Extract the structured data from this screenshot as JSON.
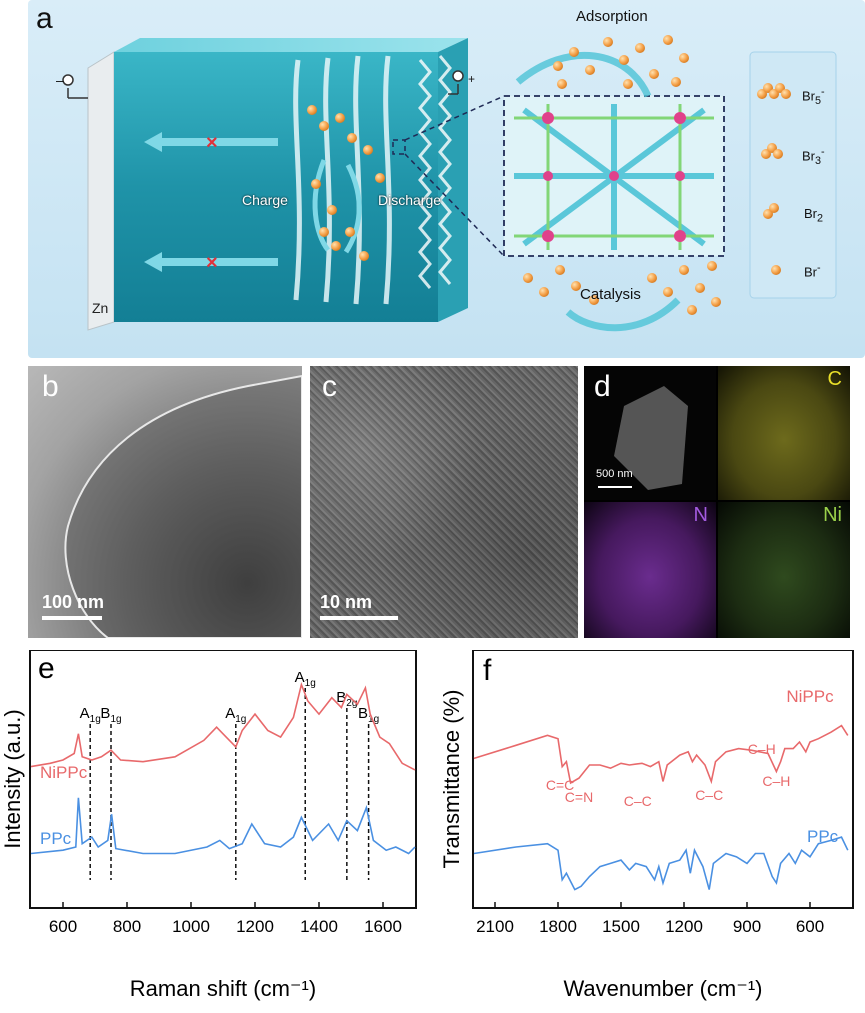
{
  "panel_a": {
    "label": "a",
    "minus_sign": "–",
    "plus_sign": "+",
    "zn_label": "Zn",
    "charge_label": "Charge",
    "discharge_label": "Discharge",
    "adsorption_label": "Adsorption",
    "catalysis_label": "Catalysis",
    "legend": [
      {
        "base": "Br",
        "sub": "5",
        "sup": "-",
        "count": 5
      },
      {
        "base": "Br",
        "sub": "3",
        "sup": "-",
        "count": 3
      },
      {
        "base": "Br",
        "sub": "2",
        "sup": "",
        "count": 2
      },
      {
        "base": "Br",
        "sub": "",
        "sup": "-",
        "count": 1
      }
    ]
  },
  "panel_b": {
    "label": "b",
    "scale": "100 nm"
  },
  "panel_c": {
    "label": "c",
    "scale": "10 nm"
  },
  "panel_d": {
    "label": "d",
    "scale": "500 nm",
    "maps": [
      "C",
      "N",
      "Ni"
    ]
  },
  "chart_data": [
    {
      "panel": "e",
      "type": "line",
      "xlabel": "Raman shift (cm⁻¹)",
      "ylabel": "Intensity (a.u.)",
      "xlim": [
        500,
        1700
      ],
      "xticks": [
        600,
        800,
        1000,
        1200,
        1400,
        1600
      ],
      "peak_lines": [
        {
          "x": 685,
          "base": "A",
          "sub": "1g"
        },
        {
          "x": 750,
          "base": "B",
          "sub": "1g"
        },
        {
          "x": 1140,
          "base": "A",
          "sub": "1g"
        },
        {
          "x": 1357,
          "base": "A",
          "sub": "1g"
        },
        {
          "x": 1487,
          "base": "B",
          "sub": "2g"
        },
        {
          "x": 1555,
          "base": "B",
          "sub": "1g"
        }
      ],
      "series": [
        {
          "name": "NiPPc",
          "color": "#e8696b",
          "offset": 0.55,
          "points": [
            [
              500,
              0.0
            ],
            [
              560,
              0.02
            ],
            [
              600,
              0.04
            ],
            [
              635,
              0.08
            ],
            [
              648,
              0.2
            ],
            [
              660,
              0.06
            ],
            [
              690,
              0.04
            ],
            [
              720,
              0.06
            ],
            [
              750,
              0.1
            ],
            [
              780,
              0.04
            ],
            [
              850,
              0.03
            ],
            [
              950,
              0.06
            ],
            [
              1040,
              0.16
            ],
            [
              1080,
              0.24
            ],
            [
              1100,
              0.2
            ],
            [
              1140,
              0.12
            ],
            [
              1160,
              0.22
            ],
            [
              1200,
              0.32
            ],
            [
              1240,
              0.22
            ],
            [
              1280,
              0.18
            ],
            [
              1320,
              0.3
            ],
            [
              1345,
              0.5
            ],
            [
              1365,
              0.4
            ],
            [
              1400,
              0.32
            ],
            [
              1440,
              0.42
            ],
            [
              1470,
              0.36
            ],
            [
              1487,
              0.44
            ],
            [
              1520,
              0.38
            ],
            [
              1545,
              0.48
            ],
            [
              1560,
              0.32
            ],
            [
              1590,
              0.18
            ],
            [
              1620,
              0.14
            ],
            [
              1660,
              0.02
            ],
            [
              1700,
              -0.02
            ]
          ]
        },
        {
          "name": "PPc",
          "color": "#4a90e2",
          "offset": 0.0,
          "points": [
            [
              500,
              0.02
            ],
            [
              600,
              0.04
            ],
            [
              640,
              0.06
            ],
            [
              648,
              0.36
            ],
            [
              660,
              0.08
            ],
            [
              690,
              0.12
            ],
            [
              710,
              0.06
            ],
            [
              740,
              0.1
            ],
            [
              752,
              0.26
            ],
            [
              765,
              0.05
            ],
            [
              850,
              0.02
            ],
            [
              950,
              0.02
            ],
            [
              1050,
              0.06
            ],
            [
              1090,
              0.1
            ],
            [
              1120,
              0.05
            ],
            [
              1160,
              0.08
            ],
            [
              1190,
              0.2
            ],
            [
              1230,
              0.08
            ],
            [
              1280,
              0.06
            ],
            [
              1320,
              0.12
            ],
            [
              1345,
              0.24
            ],
            [
              1380,
              0.1
            ],
            [
              1430,
              0.2
            ],
            [
              1460,
              0.1
            ],
            [
              1487,
              0.22
            ],
            [
              1520,
              0.16
            ],
            [
              1548,
              0.3
            ],
            [
              1570,
              0.1
            ],
            [
              1610,
              0.04
            ],
            [
              1640,
              0.06
            ],
            [
              1680,
              0.02
            ],
            [
              1700,
              0.06
            ]
          ]
        }
      ]
    },
    {
      "panel": "f",
      "type": "line",
      "xlabel": "Wavenumber (cm⁻¹)",
      "ylabel": "Transmittance (%)",
      "xlim": [
        2200,
        400
      ],
      "xticks": [
        2100,
        1800,
        1500,
        1200,
        900,
        600
      ],
      "annotations": [
        "C=C",
        "C=N",
        "C–C",
        "C–C",
        "C–H",
        "C–H"
      ],
      "series": [
        {
          "name": "NiPPc",
          "color": "#e8696b",
          "offset": 0.6,
          "points": [
            [
              2200,
              0.0
            ],
            [
              2000,
              0.08
            ],
            [
              1850,
              0.14
            ],
            [
              1800,
              0.12
            ],
            [
              1780,
              -0.05
            ],
            [
              1760,
              -0.02
            ],
            [
              1740,
              -0.15
            ],
            [
              1700,
              -0.12
            ],
            [
              1650,
              -0.04
            ],
            [
              1600,
              -0.04
            ],
            [
              1550,
              -0.06
            ],
            [
              1500,
              -0.03
            ],
            [
              1460,
              -0.04
            ],
            [
              1400,
              -0.03
            ],
            [
              1360,
              -0.05
            ],
            [
              1320,
              -0.02
            ],
            [
              1300,
              -0.14
            ],
            [
              1280,
              -0.04
            ],
            [
              1220,
              0.02
            ],
            [
              1180,
              0.04
            ],
            [
              1160,
              -0.02
            ],
            [
              1140,
              0.02
            ],
            [
              1100,
              -0.04
            ],
            [
              1070,
              -0.14
            ],
            [
              1050,
              -0.02
            ],
            [
              1000,
              0.04
            ],
            [
              940,
              0.06
            ],
            [
              880,
              0.05
            ],
            [
              840,
              0.04
            ],
            [
              800,
              0.03
            ],
            [
              760,
              -0.08
            ],
            [
              740,
              -0.02
            ],
            [
              720,
              0.06
            ],
            [
              680,
              0.06
            ],
            [
              650,
              0.1
            ],
            [
              620,
              0.04
            ],
            [
              600,
              0.1
            ],
            [
              560,
              0.12
            ],
            [
              500,
              0.16
            ],
            [
              450,
              0.2
            ],
            [
              420,
              0.14
            ]
          ]
        },
        {
          "name": "PPc",
          "color": "#4a90e2",
          "offset": 0.0,
          "points": [
            [
              2200,
              0.02
            ],
            [
              2000,
              0.06
            ],
            [
              1850,
              0.08
            ],
            [
              1800,
              0.04
            ],
            [
              1780,
              -0.14
            ],
            [
              1760,
              -0.1
            ],
            [
              1720,
              -0.2
            ],
            [
              1690,
              -0.18
            ],
            [
              1650,
              -0.12
            ],
            [
              1600,
              -0.06
            ],
            [
              1550,
              -0.04
            ],
            [
              1500,
              -0.02
            ],
            [
              1460,
              -0.08
            ],
            [
              1430,
              -0.04
            ],
            [
              1380,
              -0.06
            ],
            [
              1340,
              -0.14
            ],
            [
              1320,
              -0.06
            ],
            [
              1300,
              -0.16
            ],
            [
              1270,
              -0.04
            ],
            [
              1220,
              -0.02
            ],
            [
              1190,
              0.04
            ],
            [
              1170,
              -0.1
            ],
            [
              1150,
              0.04
            ],
            [
              1110,
              -0.06
            ],
            [
              1080,
              -0.2
            ],
            [
              1060,
              -0.04
            ],
            [
              1000,
              0.02
            ],
            [
              950,
              0.0
            ],
            [
              900,
              -0.04
            ],
            [
              860,
              0.02
            ],
            [
              820,
              0.02
            ],
            [
              780,
              -0.12
            ],
            [
              760,
              -0.16
            ],
            [
              740,
              -0.04
            ],
            [
              700,
              0.02
            ],
            [
              670,
              -0.04
            ],
            [
              640,
              0.04
            ],
            [
              600,
              0.0
            ],
            [
              560,
              0.08
            ],
            [
              500,
              0.1
            ],
            [
              450,
              0.12
            ],
            [
              420,
              0.04
            ]
          ]
        }
      ]
    }
  ]
}
